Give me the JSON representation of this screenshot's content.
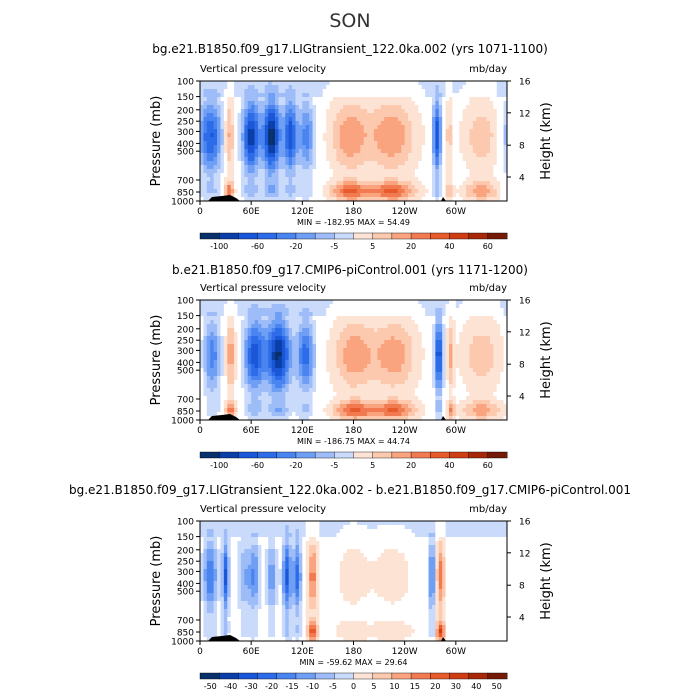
{
  "season": "SON",
  "colors": {
    "neg": [
      "#08306b",
      "#0b3fa8",
      "#1a56d8",
      "#2d6ce8",
      "#4a84f0",
      "#6f9ff5",
      "#9dbcf8",
      "#c9dafb"
    ],
    "pos": [
      "#fde3d4",
      "#fcc9ae",
      "#f9a47e",
      "#f27a50",
      "#e75a2c",
      "#cf3d13",
      "#a62808",
      "#741a05"
    ]
  },
  "chart_data": [
    {
      "type": "heatmap",
      "title": "bg.e21.B1850.f09_g17.LIGtransient_122.0ka.002 (yrs 1071-1100)",
      "subtitle_left": "Vertical pressure velocity",
      "subtitle_right": "mb/day",
      "ylabel": "Pressure (mb)",
      "y2label": "Height (km)",
      "x_ticks": [
        "0",
        "60E",
        "120E",
        "180",
        "120W",
        "60W"
      ],
      "y_ticks": [
        "100",
        "150",
        "200",
        "250",
        "300",
        "400",
        "500",
        "700",
        "850",
        "1000"
      ],
      "y2_ticks": [
        "16",
        "12",
        "8",
        "4"
      ],
      "minmax": "MIN = -182.95   MAX =  54.49",
      "colorbar_labels": [
        "-100",
        "-60",
        "-20",
        "-5",
        "5",
        "20",
        "40",
        "60"
      ],
      "xlim": [
        0,
        360
      ],
      "ylim": [
        1000,
        100
      ],
      "features": [
        {
          "lon": 12,
          "width": 14,
          "strength": -3.2
        },
        {
          "lon": 34,
          "width": 6,
          "strength": 2.6
        },
        {
          "lon": 60,
          "width": 10,
          "strength": -4.0
        },
        {
          "lon": 84,
          "width": 10,
          "strength": -4.6
        },
        {
          "lon": 106,
          "width": 8,
          "strength": -3.5
        },
        {
          "lon": 125,
          "width": 9,
          "strength": -2.3
        },
        {
          "lon": 175,
          "width": 22,
          "strength": 2.7
        },
        {
          "lon": 225,
          "width": 28,
          "strength": 2.8
        },
        {
          "lon": 278,
          "width": 5,
          "strength": -3.6
        },
        {
          "lon": 292,
          "width": 4,
          "strength": 1.6
        },
        {
          "lon": 330,
          "width": 22,
          "strength": 1.8
        }
      ]
    },
    {
      "type": "heatmap",
      "title": "b.e21.B1850.f09_g17.CMIP6-piControl.001 (yrs 1171-1200)",
      "subtitle_left": "Vertical pressure velocity",
      "subtitle_right": "mb/day",
      "ylabel": "Pressure (mb)",
      "y2label": "Height (km)",
      "x_ticks": [
        "0",
        "60E",
        "120E",
        "180",
        "120W",
        "60W"
      ],
      "y_ticks": [
        "100",
        "150",
        "200",
        "250",
        "300",
        "400",
        "500",
        "700",
        "850",
        "1000"
      ],
      "y2_ticks": [
        "16",
        "12",
        "8",
        "4"
      ],
      "minmax": "MIN = -186.75   MAX =  44.74",
      "colorbar_labels": [
        "-100",
        "-60",
        "-20",
        "-5",
        "5",
        "20",
        "40",
        "60"
      ],
      "xlim": [
        0,
        360
      ],
      "ylim": [
        1000,
        100
      ],
      "features": [
        {
          "lon": 14,
          "width": 10,
          "strength": -2.4
        },
        {
          "lon": 36,
          "width": 6,
          "strength": 2.6
        },
        {
          "lon": 64,
          "width": 12,
          "strength": -3.4
        },
        {
          "lon": 92,
          "width": 14,
          "strength": -4.3
        },
        {
          "lon": 124,
          "width": 10,
          "strength": -2.8
        },
        {
          "lon": 180,
          "width": 24,
          "strength": 2.6
        },
        {
          "lon": 228,
          "width": 26,
          "strength": 2.6
        },
        {
          "lon": 280,
          "width": 5,
          "strength": -3.7
        },
        {
          "lon": 294,
          "width": 4,
          "strength": 2.1
        },
        {
          "lon": 330,
          "width": 24,
          "strength": 1.8
        }
      ]
    },
    {
      "type": "heatmap",
      "title": "bg.e21.B1850.f09_g17.LIGtransient_122.0ka.002 - b.e21.B1850.f09_g17.CMIP6-piControl.001",
      "subtitle_left": "Vertical pressure velocity",
      "subtitle_right": "mb/day",
      "ylabel": "Pressure (mb)",
      "y2label": "Height (km)",
      "x_ticks": [
        "0",
        "60E",
        "120E",
        "180",
        "120W",
        "60W"
      ],
      "y_ticks": [
        "100",
        "150",
        "200",
        "250",
        "300",
        "400",
        "500",
        "700",
        "850",
        "1000"
      ],
      "y2_ticks": [
        "16",
        "12",
        "8",
        "4"
      ],
      "minmax": "MIN = -59.62   MAX =  29.64",
      "colorbar_labels": [
        "-50",
        "-40",
        "-30",
        "-20",
        "-15",
        "-10",
        "-5",
        "0",
        "5",
        "10",
        "15",
        "20",
        "30",
        "40",
        "50"
      ],
      "xlim": [
        0,
        360
      ],
      "ylim": [
        1000,
        100
      ],
      "features": [
        {
          "lon": 12,
          "width": 8,
          "strength": -2.6
        },
        {
          "lon": 30,
          "width": 4,
          "strength": -3.2
        },
        {
          "lon": 52,
          "width": 8,
          "strength": -1.5
        },
        {
          "lon": 64,
          "width": 6,
          "strength": -2.0
        },
        {
          "lon": 84,
          "width": 6,
          "strength": -1.8
        },
        {
          "lon": 102,
          "width": 5,
          "strength": -3.3
        },
        {
          "lon": 114,
          "width": 5,
          "strength": -2.8
        },
        {
          "lon": 132,
          "width": 6,
          "strength": 3.3
        },
        {
          "lon": 178,
          "width": 20,
          "strength": 0.8
        },
        {
          "lon": 226,
          "width": 26,
          "strength": 0.8
        },
        {
          "lon": 272,
          "width": 4,
          "strength": -2.6
        },
        {
          "lon": 282,
          "width": 5,
          "strength": 3.4
        }
      ]
    }
  ]
}
